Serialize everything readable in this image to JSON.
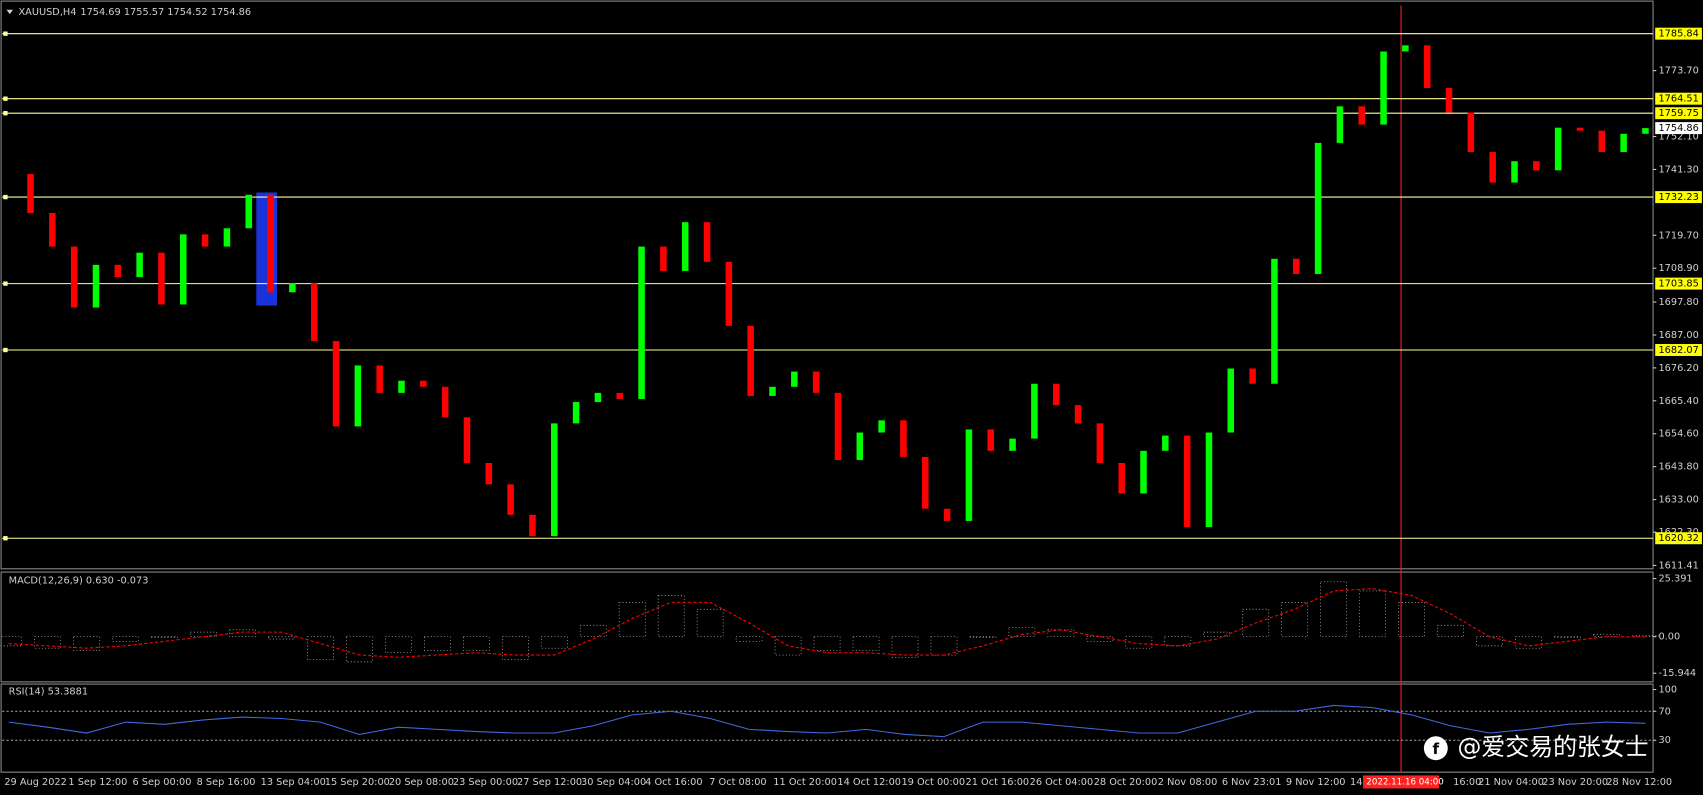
{
  "header": {
    "symbol": "XAUUSD,H4",
    "ohlc": "1754.69 1755.57 1754.52 1754.86"
  },
  "chart_data": [
    {
      "type": "candlestick",
      "values": [
        1739.8,
        1727,
        1716,
        1696,
        1710,
        1706,
        1714,
        1697,
        1720,
        1716,
        1722,
        1733,
        1701,
        1704,
        1685,
        1657,
        1677,
        1668,
        1672,
        1670,
        1660,
        1645,
        1638,
        1628,
        1621,
        1658,
        1665,
        1668,
        1666,
        1716,
        1708,
        1724,
        1711,
        1690,
        1667,
        1670,
        1675,
        1668,
        1646,
        1655,
        1659,
        1647,
        1630,
        1626,
        1656,
        1649,
        1653,
        1671,
        1664,
        1658,
        1645,
        1635,
        1649,
        1654,
        1624,
        1655,
        1676,
        1671,
        1712,
        1707,
        1750,
        1762,
        1756,
        1780,
        1782,
        1768,
        1760,
        1747,
        1737,
        1744,
        1741,
        1755,
        1754,
        1747,
        1753,
        1754.86
      ],
      "up_color": "#00ff00",
      "down_color": "#ff0000",
      "ylim": [
        1610.3,
        1795.1
      ],
      "yticks": [
        1611.41,
        {
          "value": 1622.3,
          "label": "1622.30"
        },
        {
          "value": 1633,
          "label": "1633.00"
        },
        {
          "value": 1643.8,
          "label": "1643.80"
        },
        {
          "value": 1654.6,
          "label": "1654.60"
        },
        {
          "value": 1665.4,
          "label": "1665.40"
        },
        {
          "value": 1676.2,
          "label": "1676.20"
        },
        {
          "value": 1687,
          "label": "1687.00"
        },
        {
          "value": 1697.8,
          "label": "1697.80"
        },
        {
          "value": 1708.9,
          "label": "1708.90"
        },
        {
          "value": 1719.7,
          "label": "1719.70"
        },
        {
          "value": 1741.3,
          "label": "1741.30"
        },
        {
          "value": 1752.1,
          "label": "1752.10"
        },
        {
          "value": 1773.7,
          "label": "1773.70"
        }
      ],
      "levels": [
        1785.84,
        1764.51,
        1759.75,
        1732.23,
        1703.85,
        1682.07,
        1620.32
      ],
      "level_color": "#ffff99",
      "current_price": 1754.86
    },
    {
      "type": "macd",
      "title": "MACD(12,26,9) 0.630 -0.073",
      "series": [
        {
          "values": [
            -4,
            -5,
            -6,
            -2,
            0,
            2,
            3,
            -1,
            -10,
            -11,
            -7,
            -6,
            -6,
            -10,
            -5,
            5,
            15,
            18,
            12,
            -2,
            -8,
            -6,
            -6,
            -9,
            -8,
            0,
            4,
            3,
            -2,
            -5,
            -4,
            2,
            12,
            15,
            24,
            20,
            15,
            5,
            -4,
            -5,
            0,
            1,
            0.63
          ],
          "color": "#c0c0c0"
        },
        {
          "values": [
            -3,
            -4,
            -5,
            -4,
            -2,
            0,
            2,
            2,
            -3,
            -8,
            -9,
            -8,
            -7,
            -8,
            -8,
            -1,
            8,
            15,
            15,
            6,
            -4,
            -7,
            -7,
            -8,
            -8,
            -4,
            1,
            3,
            0,
            -3,
            -4,
            -1,
            6,
            12,
            20,
            21,
            18,
            10,
            0,
            -4,
            -2,
            0,
            -0.07
          ],
          "color": "#ff0000"
        }
      ],
      "ylim": [
        -19.74,
        27.77
      ],
      "yticks": [
        25.391,
        {
          "value": 0,
          "label": "0.00"
        },
        -15.944
      ]
    },
    {
      "type": "line",
      "title": "RSI(14) 53.3881",
      "values": [
        55,
        48,
        40,
        55,
        52,
        58,
        62,
        60,
        55,
        38,
        48,
        45,
        42,
        40,
        40,
        50,
        65,
        70,
        60,
        45,
        42,
        40,
        45,
        38,
        35,
        55,
        55,
        50,
        45,
        40,
        40,
        55,
        70,
        70,
        78,
        75,
        65,
        50,
        40,
        45,
        52,
        55,
        53.39
      ],
      "color": "#4169e1",
      "ylim": [
        -14,
        107.5
      ],
      "yticks": [
        100,
        70,
        30
      ],
      "levels": [
        70,
        30
      ]
    }
  ],
  "time_axis": {
    "labels": [
      "29 Aug 2022",
      "1 Sep 12:00",
      "6 Sep 00:00",
      "8 Sep 16:00",
      "13 Sep 04:00",
      "15 Sep 20:00",
      "20 Sep 08:00",
      "23 Sep 00:00",
      "27 Sep 12:00",
      "30 Sep 04:00",
      "4 Oct 16:00",
      "7 Oct 08:00",
      "11 Oct 20:00",
      "14 Oct 12:00",
      "19 Oct 00:00",
      "21 Oct 16:00",
      "26 Oct 04:00",
      "28 Oct 20:00",
      "2 Nov 08:00",
      "6 Nov 23:01",
      "9 Nov 12:00",
      "14",
      "16:00",
      "21 Nov 04:00",
      "23 Nov 20:00",
      "28 Nov 12:00"
    ]
  },
  "crosshair_label": "2022.11.16 04:00",
  "watermark": "@爱交易的张女士"
}
